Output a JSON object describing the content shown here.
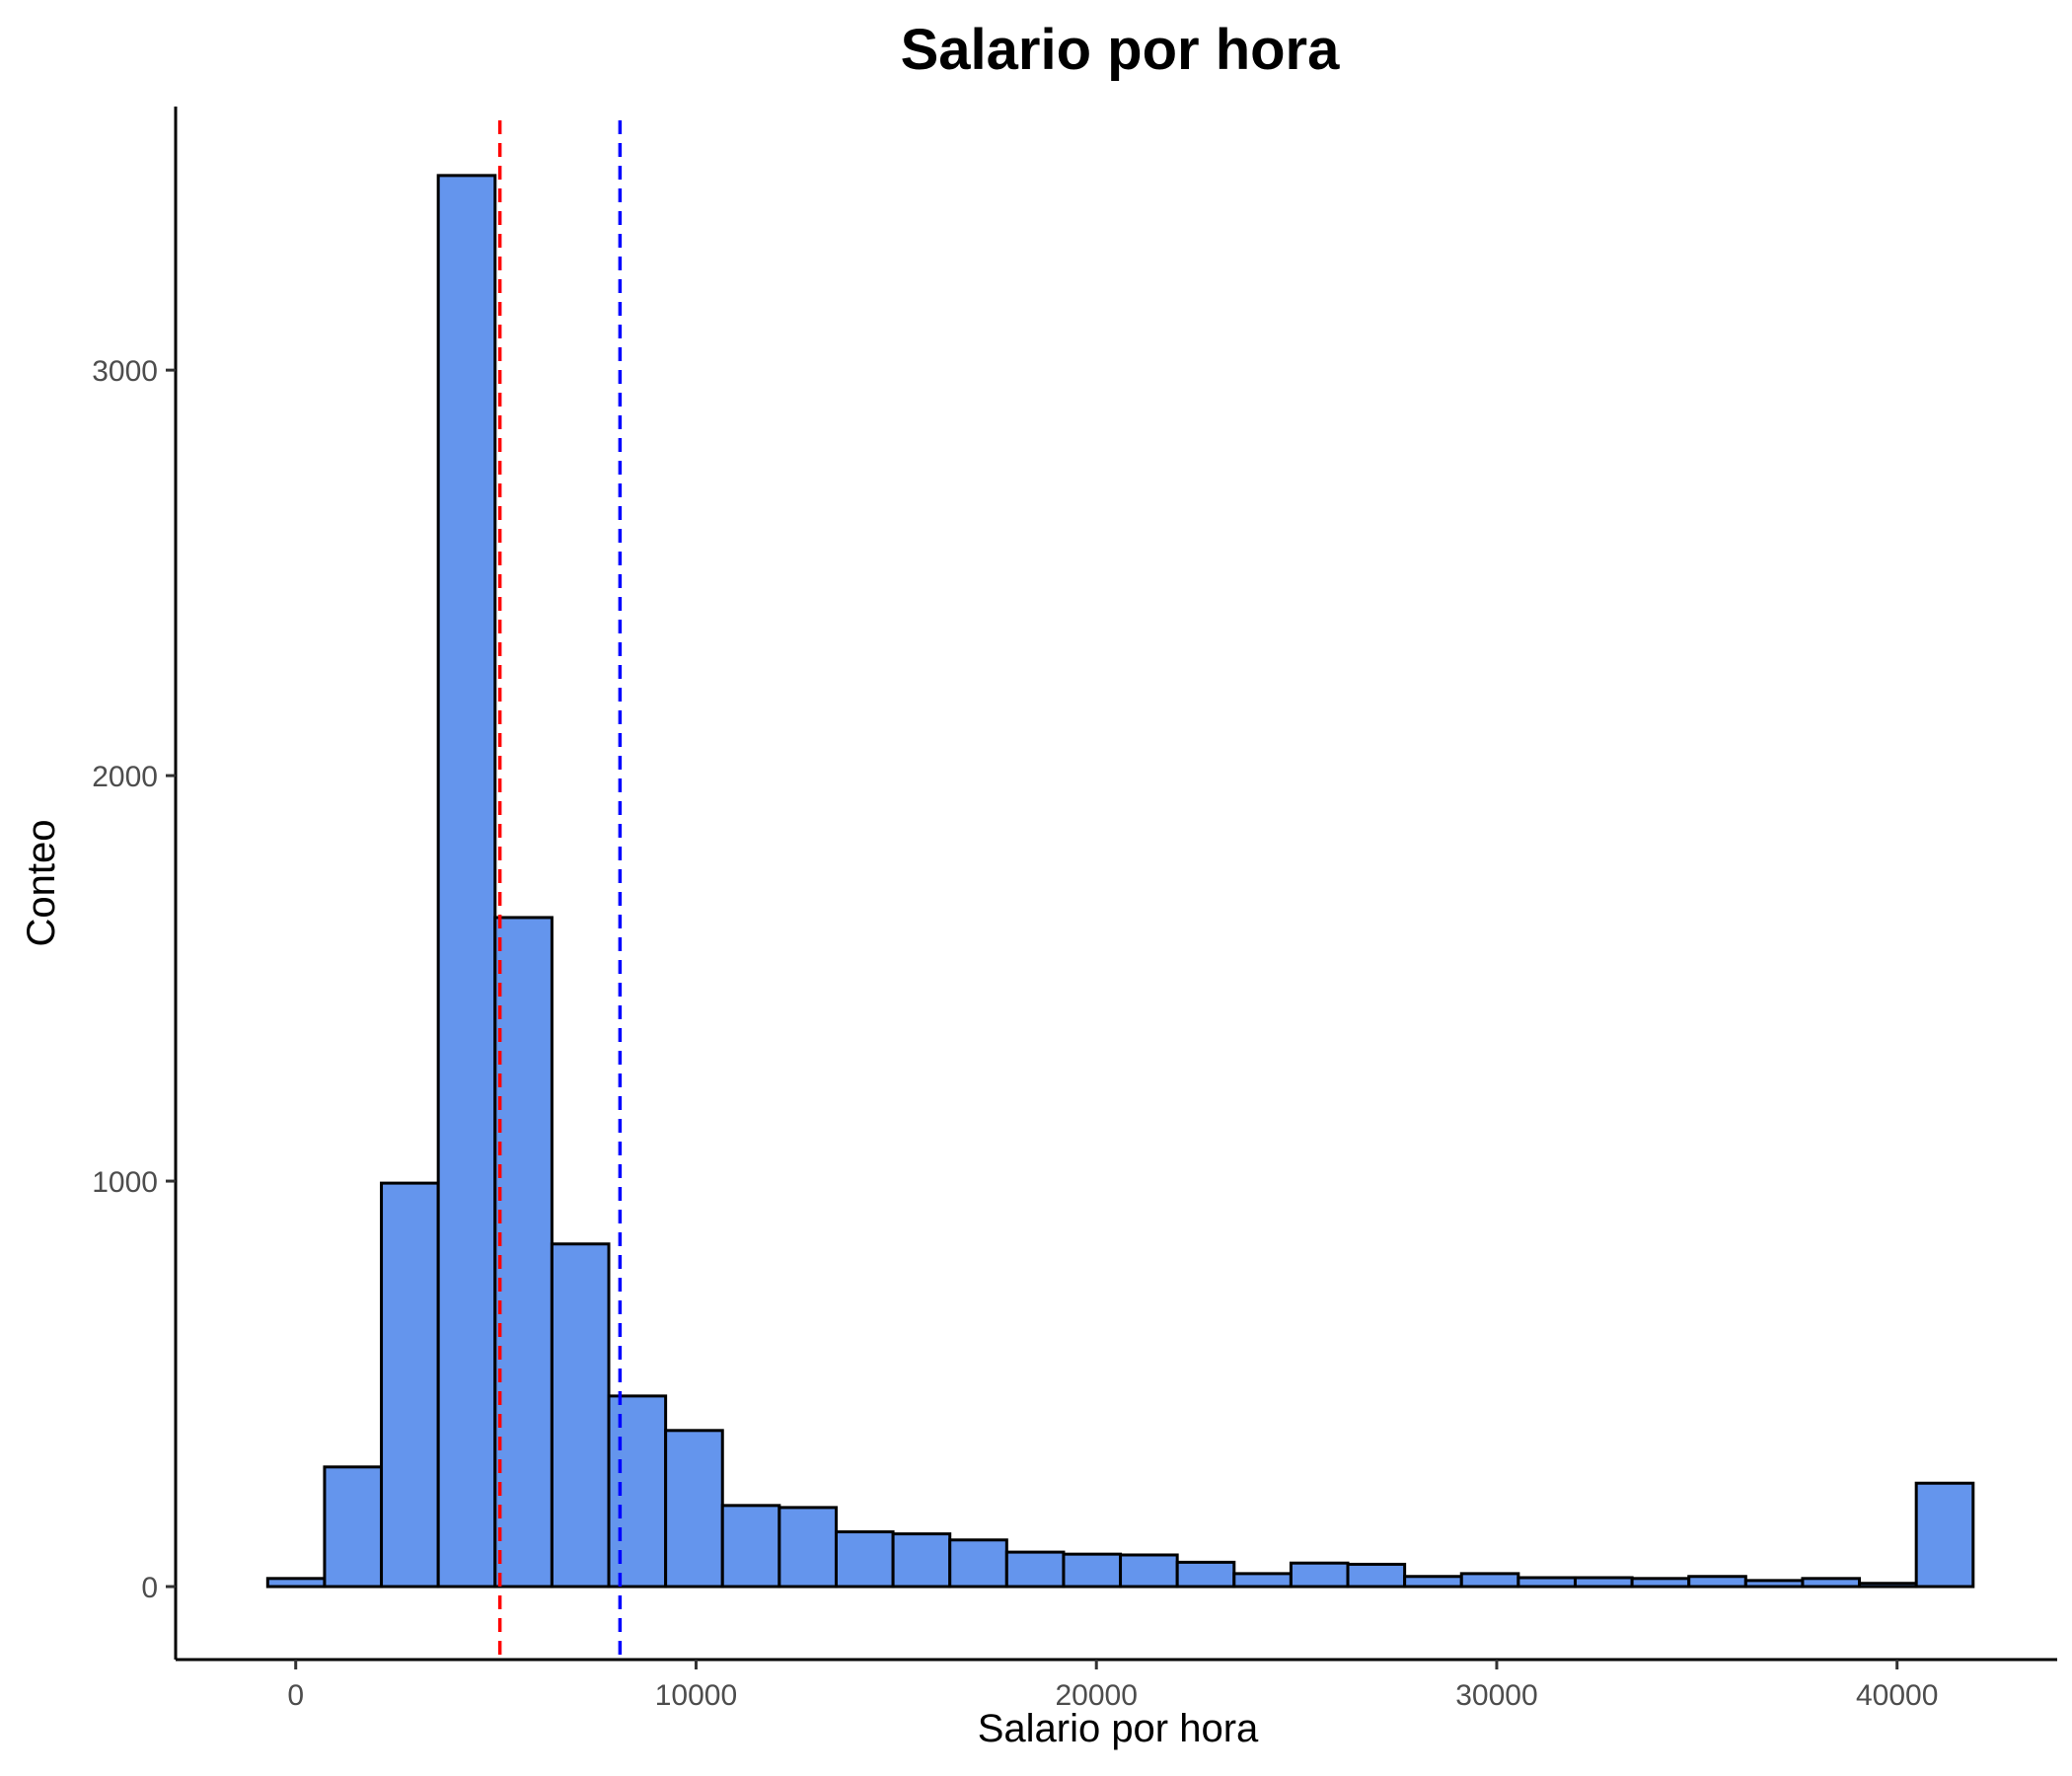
{
  "chart_data": {
    "type": "bar",
    "title": "Salario por hora",
    "xlabel": "Salario por hora",
    "ylabel": "Conteo",
    "xlim": [
      -3000,
      44000
    ],
    "ylim": [
      -180,
      3650
    ],
    "x_ticks": [
      0,
      10000,
      20000,
      30000,
      40000
    ],
    "x_tick_labels": [
      "0",
      "10000",
      "20000",
      "30000",
      "40000"
    ],
    "y_ticks": [
      0,
      1000,
      2000,
      3000
    ],
    "y_tick_labels": [
      "0",
      "1000",
      "2000",
      "3000"
    ],
    "bin_edges": [
      -700,
      720,
      2140,
      3560,
      4980,
      6400,
      7820,
      9240,
      10660,
      12080,
      13500,
      14920,
      16340,
      17760,
      19180,
      20600,
      22020,
      23440,
      24860,
      26280,
      27700,
      29120,
      30540,
      31960,
      33380,
      34800,
      36220,
      37640,
      39060,
      40480,
      41900
    ],
    "values": [
      20,
      295,
      995,
      3480,
      1650,
      845,
      470,
      385,
      200,
      195,
      135,
      130,
      115,
      85,
      80,
      78,
      60,
      32,
      58,
      55,
      25,
      32,
      22,
      22,
      20,
      25,
      15,
      20,
      8,
      255
    ],
    "reference_lines": [
      {
        "x": 5100,
        "color": "#ff0000",
        "style": "dashed"
      },
      {
        "x": 8100,
        "color": "#0000ff",
        "style": "dashed"
      }
    ],
    "bar_fill": "#6495ed",
    "bar_stroke": "#000000",
    "grid": false,
    "legend": "none"
  }
}
